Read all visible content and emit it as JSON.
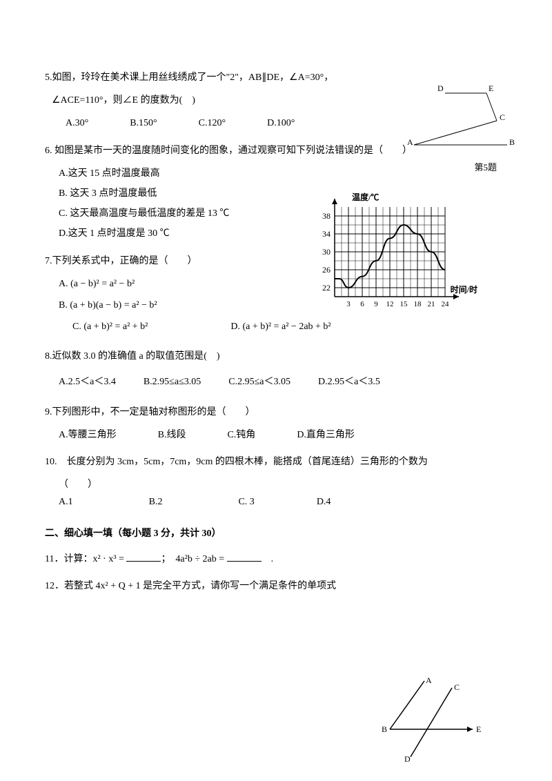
{
  "q5": {
    "text": "5.如图，玲玲在美术课上用丝线绣成了一个\"2\"，AB∥DE，∠A=30°，",
    "text2": "∠ACE=110°，则∠E 的度数为(　)",
    "options": {
      "A": "A.30°",
      "B": "B.150°",
      "C": "C.120°",
      "D": "D.100°"
    },
    "fig": {
      "caption": "第5题",
      "labels": {
        "A": "A",
        "B": "B",
        "C": "C",
        "D": "D",
        "E": "E"
      },
      "stroke": "#000000"
    }
  },
  "q6": {
    "text": "6. 如图是某市一天的温度随时间变化的图象，通过观察可知下列说法错误的是（　　）",
    "options": {
      "A": "A.这天 15 点时温度最高",
      "B": "B. 这天 3 点时温度最低",
      "C": "C. 这天最高温度与最低温度的差是 13 ℃",
      "D": "D.这天 1 点时温度是 30 ℃"
    },
    "chart": {
      "type": "line",
      "y_label": "温度/℃",
      "x_label": "时间/时",
      "x_ticks": [
        "3",
        "6",
        "9",
        "12",
        "15",
        "18",
        "21",
        "24"
      ],
      "y_ticks": [
        "22",
        "26",
        "30",
        "34",
        "38"
      ],
      "ylim": [
        20,
        40
      ],
      "xlim": [
        0,
        24
      ],
      "grid_color": "#000000",
      "line_color": "#000000",
      "background_color": "#ffffff",
      "line_width": 2,
      "points_x": [
        0,
        1,
        3,
        6,
        9,
        12,
        15,
        18,
        21,
        24
      ],
      "points_y": [
        24,
        24,
        22,
        24.5,
        28,
        33,
        36,
        34,
        30,
        26
      ]
    }
  },
  "q7": {
    "text": "7.下列关系式中，正确的是（　　）",
    "options": {
      "A": "A. (a − b)² = a² − b²",
      "B": "B. (a + b)(a − b) = a² − b²",
      "C": "C. (a + b)² = a² + b²",
      "D": "D. (a + b)² = a² − 2ab + b²"
    }
  },
  "q8": {
    "text": "8.近似数 3.0 的准确值 a 的取值范围是(　)",
    "options": {
      "A": "A.2.5＜a＜3.4",
      "B": "B.2.95≤a≤3.05",
      "C": "C.2.95≤a＜3.05",
      "D": "D.2.95＜a＜3.5"
    }
  },
  "q9": {
    "text": "9.下列图形中，不一定是轴对称图形的是（　　）",
    "options": {
      "A": "A.等腰三角形",
      "B": "B.线段",
      "C": "C.钝角",
      "D": "D.直角三角形"
    }
  },
  "q10": {
    "text": "10.　长度分别为 3cm，5cm，7cm，9cm 的四根木棒，能搭成（首尾连结）三角形的个数为",
    "text2": "（　　）",
    "options": {
      "A": "A.1",
      "B": "B.2",
      "C": "C. 3",
      "D": "D.4"
    }
  },
  "section2": {
    "title": "二、细心填一填（每小题 3 分，共计 30）"
  },
  "q11": {
    "text_a": "11．计算：x² · x³ = ",
    "text_b": "；　4a²b ÷ 2ab = ",
    "text_c": "　."
  },
  "q12": {
    "text": "12．若整式 4x² + Q + 1 是完全平方式，请你写一个满足条件的单项式",
    "fig": {
      "labels": {
        "A": "A",
        "B": "B",
        "C": "C",
        "D": "D",
        "E": "E"
      },
      "stroke": "#000000"
    }
  }
}
